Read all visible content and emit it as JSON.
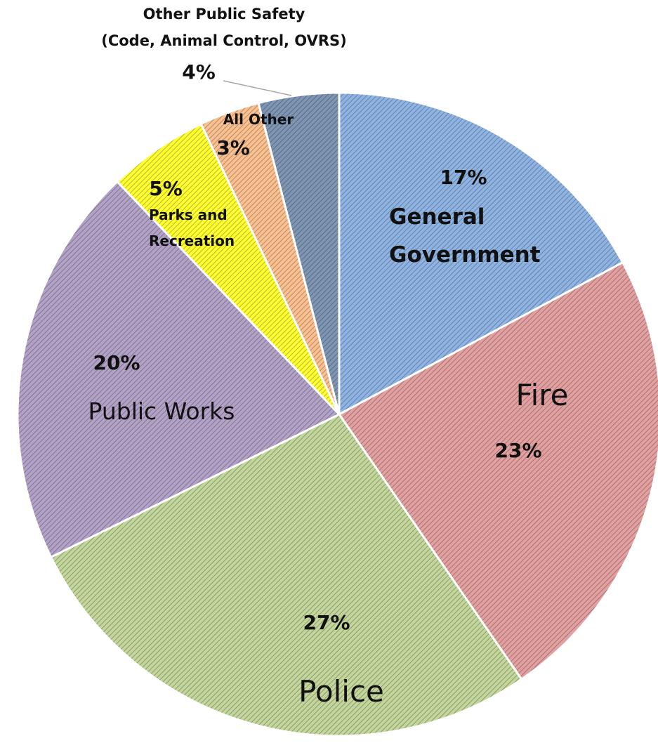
{
  "chart_data": {
    "type": "pie",
    "slices": [
      {
        "key": "general_government",
        "name_lines": [
          "General",
          "Government"
        ],
        "value": 17,
        "label": "17%",
        "color": "#8fb4e3"
      },
      {
        "key": "fire",
        "name_lines": [
          "Fire"
        ],
        "value": 23,
        "label": "23%",
        "color": "#e3a0a0"
      },
      {
        "key": "police",
        "name_lines": [
          "Police"
        ],
        "value": 27,
        "label": "27%",
        "color": "#c3d69b"
      },
      {
        "key": "public_works",
        "name_lines": [
          "Public Works"
        ],
        "value": 20,
        "label": "20%",
        "color": "#b3a2c7"
      },
      {
        "key": "parks_recreation",
        "name_lines": [
          "Parks and",
          "Recreation"
        ],
        "value": 5,
        "label": "5%",
        "color": "#ffff33"
      },
      {
        "key": "all_other",
        "name_lines": [
          "All Other"
        ],
        "value": 3,
        "label": "3%",
        "color": "#fac090"
      },
      {
        "key": "other_public_safety",
        "name_lines": [
          "Other Public Safety",
          "(Code, Animal Control, OVRS)"
        ],
        "value": 4,
        "label": "4%",
        "color": "#7e96b4"
      }
    ]
  }
}
